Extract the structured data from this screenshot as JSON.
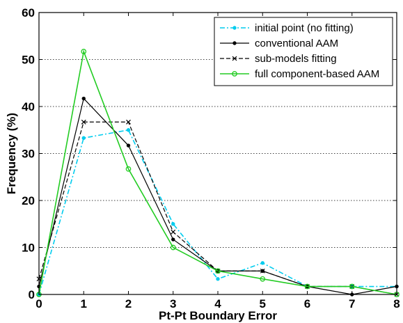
{
  "chart_data": {
    "type": "line",
    "title": "",
    "xlabel": "Pt-Pt Boundary Error",
    "ylabel": "Frequency (%)",
    "xlim": [
      0,
      8
    ],
    "ylim": [
      0,
      60
    ],
    "x_ticks": [
      0,
      1,
      2,
      3,
      4,
      5,
      6,
      7,
      8
    ],
    "y_ticks": [
      0,
      10,
      20,
      30,
      40,
      50,
      60
    ],
    "grid": "horizontal dotted",
    "legend_position": "top-right",
    "x": [
      0,
      1,
      2,
      3,
      4,
      5,
      6,
      7,
      8
    ],
    "series": [
      {
        "name": "initial point (no fitting)",
        "color": "#00ccee",
        "line_style": "dash-dot",
        "marker": "dot",
        "values": [
          0,
          33.3,
          35.0,
          15.0,
          3.3,
          6.7,
          1.7,
          1.7,
          1.7
        ]
      },
      {
        "name": "conventional AAM",
        "color": "#000000",
        "line_style": "solid",
        "marker": "dot",
        "values": [
          1.7,
          41.7,
          31.7,
          11.7,
          5.0,
          5.0,
          1.7,
          0,
          1.7
        ]
      },
      {
        "name": "sub-models fitting",
        "color": "#000000",
        "line_style": "dashed",
        "marker": "x",
        "values": [
          3.3,
          36.7,
          36.7,
          13.3,
          5.0,
          5.0,
          1.7,
          1.7,
          0
        ]
      },
      {
        "name": "full component-based AAM",
        "color": "#22cc22",
        "line_style": "solid",
        "marker": "circle",
        "values": [
          0,
          51.7,
          26.7,
          10.0,
          5.0,
          3.3,
          1.7,
          1.7,
          0
        ]
      }
    ]
  }
}
